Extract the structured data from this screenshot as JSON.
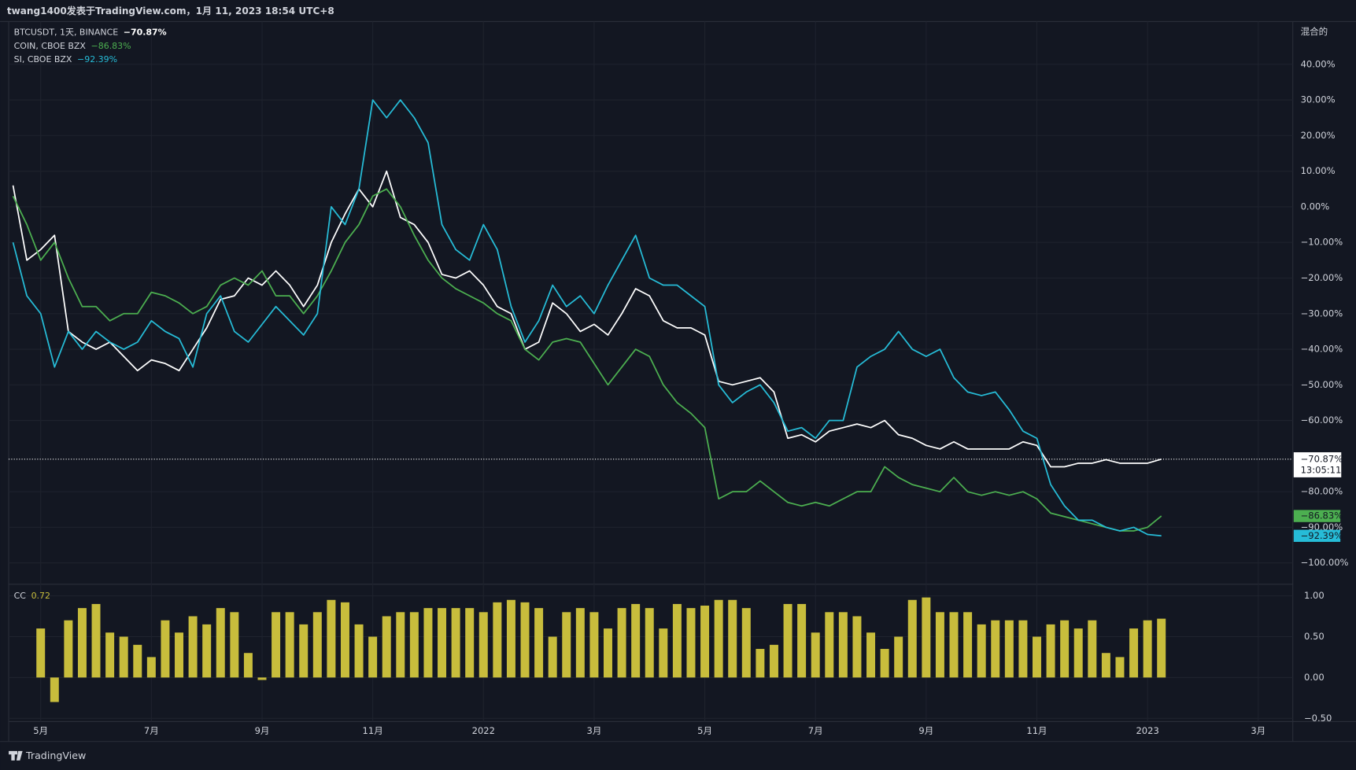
{
  "header": {
    "text": "twang1400发表于TradingView.com，1月 11, 2023 18:54 UTC+8"
  },
  "footer": {
    "brand": "TradingView"
  },
  "chart_data": [
    {
      "type": "line",
      "scale_label": "混合的",
      "countdown": "13:05:11",
      "grid": true,
      "categories": [
        null,
        null,
        "5月",
        null,
        null,
        null,
        null,
        null,
        null,
        null,
        "7月",
        null,
        null,
        null,
        null,
        null,
        null,
        null,
        "9月",
        null,
        null,
        null,
        null,
        null,
        null,
        null,
        "11月",
        null,
        null,
        null,
        null,
        null,
        null,
        null,
        "2022",
        null,
        null,
        null,
        null,
        null,
        null,
        null,
        "3月",
        null,
        null,
        null,
        null,
        null,
        null,
        null,
        "5月",
        null,
        null,
        null,
        null,
        null,
        null,
        null,
        "7月",
        null,
        null,
        null,
        null,
        null,
        null,
        null,
        "9月",
        null,
        null,
        null,
        null,
        null,
        null,
        null,
        "11月",
        null,
        null,
        null,
        null,
        null,
        null,
        null,
        "2023",
        null,
        null,
        null,
        null,
        null,
        null,
        null,
        "3月",
        null,
        null
      ],
      "ylim": [
        -105,
        52
      ],
      "yticks": [
        {
          "value": 40,
          "label": "40.00%"
        },
        {
          "value": 30,
          "label": "30.00%"
        },
        {
          "value": 20,
          "label": "20.00%"
        },
        {
          "value": 10,
          "label": "10.00%"
        },
        {
          "value": 0,
          "label": "0.00%"
        },
        {
          "value": -10,
          "label": "−10.00%"
        },
        {
          "value": -20,
          "label": "−20.00%"
        },
        {
          "value": -30,
          "label": "−30.00%"
        },
        {
          "value": -40,
          "label": "−40.00%"
        },
        {
          "value": -50,
          "label": "−50.00%"
        },
        {
          "value": -60,
          "label": "−60.00%"
        },
        {
          "value": -80,
          "label": "−80.00%"
        },
        {
          "value": -90,
          "label": "−90.00%"
        },
        {
          "value": -100,
          "label": "−100.00%"
        }
      ],
      "series": [
        {
          "name": "BTCUSDT, 1天, BINANCE",
          "color": "#ffffff",
          "last_value_label": "−70.87%",
          "values": [
            6,
            -15,
            -12,
            -8,
            -35,
            -38,
            -40,
            -38,
            -42,
            -46,
            -43,
            -44,
            -46,
            -40,
            -34,
            -26,
            -25,
            -20,
            -22,
            -18,
            -22,
            -28,
            -22,
            -10,
            -2,
            5,
            0,
            10,
            -3,
            -5,
            -10,
            -19,
            -20,
            -18,
            -22,
            -28,
            -30,
            -40,
            -38,
            -27,
            -30,
            -35,
            -33,
            -36,
            -30,
            -23,
            -25,
            -32,
            -34,
            -34,
            -36,
            -49,
            -50,
            -49,
            -48,
            -52,
            -65,
            -64,
            -66,
            -63,
            -62,
            -61,
            -62,
            -60,
            -64,
            -65,
            -67,
            -68,
            -66,
            -68,
            -68,
            -68,
            -68,
            -66,
            -67,
            -73,
            -73,
            -72,
            -72,
            -71,
            -72,
            -72,
            -72,
            -70.87,
            null,
            null,
            null,
            null,
            null,
            null,
            null,
            null,
            null
          ]
        },
        {
          "name": "COIN, CBOE BZX",
          "color": "#4caf50",
          "last_value_label": "−86.83%",
          "values": [
            3,
            -5,
            -15,
            -10,
            -20,
            -28,
            -28,
            -32,
            -30,
            -30,
            -24,
            -25,
            -27,
            -30,
            -28,
            -22,
            -20,
            -22,
            -18,
            -25,
            -25,
            -30,
            -25,
            -18,
            -10,
            -5,
            3,
            5,
            0,
            -8,
            -15,
            -20,
            -23,
            -25,
            -27,
            -30,
            -32,
            -40,
            -43,
            -38,
            -37,
            -38,
            -44,
            -50,
            -45,
            -40,
            -42,
            -50,
            -55,
            -58,
            -62,
            -82,
            -80,
            -80,
            -77,
            -80,
            -83,
            -84,
            -83,
            -84,
            -82,
            -80,
            -80,
            -73,
            -76,
            -78,
            -79,
            -80,
            -76,
            -80,
            -81,
            -80,
            -81,
            -80,
            -82,
            -86,
            -87,
            -88,
            -89,
            -90,
            -91,
            -91,
            -90,
            -86.83,
            null,
            null,
            null,
            null,
            null,
            null,
            null,
            null,
            null
          ]
        },
        {
          "name": "SI, CBOE BZX",
          "color": "#26bcd7",
          "last_value_label": "−92.39%",
          "values": [
            -10,
            -25,
            -30,
            -45,
            -35,
            -40,
            -35,
            -38,
            -40,
            -38,
            -32,
            -35,
            -37,
            -45,
            -30,
            -25,
            -35,
            -38,
            -33,
            -28,
            -32,
            -36,
            -30,
            0,
            -5,
            5,
            30,
            25,
            30,
            25,
            18,
            -5,
            -12,
            -15,
            -5,
            -12,
            -28,
            -38,
            -32,
            -22,
            -28,
            -25,
            -30,
            -22,
            -15,
            -8,
            -20,
            -22,
            -22,
            -25,
            -28,
            -50,
            -55,
            -52,
            -50,
            -55,
            -63,
            -62,
            -65,
            -60,
            -60,
            -45,
            -42,
            -40,
            -35,
            -40,
            -42,
            -40,
            -48,
            -52,
            -53,
            -52,
            -57,
            -63,
            -65,
            -78,
            -84,
            -88,
            -88,
            -90,
            -91,
            -90,
            -92,
            -92.39,
            null,
            null,
            null,
            null,
            null,
            null,
            null,
            null,
            null
          ]
        }
      ]
    },
    {
      "type": "bar",
      "name": "CC",
      "color": "#c8bd3c",
      "ylim": [
        -0.54,
        1.1
      ],
      "yticks": [
        {
          "value": 1,
          "label": "1.00"
        },
        {
          "value": 0.5,
          "label": "0.50"
        },
        {
          "value": 0,
          "label": "0.00"
        },
        {
          "value": -0.5,
          "label": "−0.50"
        }
      ],
      "values": [
        null,
        null,
        0.6,
        -0.3,
        0.7,
        0.85,
        0.9,
        0.55,
        0.5,
        0.4,
        0.25,
        0.7,
        0.55,
        0.75,
        0.65,
        0.85,
        0.8,
        0.3,
        -0.03,
        0.8,
        0.8,
        0.65,
        0.8,
        0.95,
        0.92,
        0.65,
        0.5,
        0.75,
        0.8,
        0.8,
        0.85,
        0.85,
        0.85,
        0.85,
        0.8,
        0.92,
        0.95,
        0.92,
        0.85,
        0.5,
        0.8,
        0.85,
        0.8,
        0.6,
        0.85,
        0.9,
        0.85,
        0.6,
        0.9,
        0.85,
        0.88,
        0.95,
        0.95,
        0.85,
        0.35,
        0.4,
        0.9,
        0.9,
        0.55,
        0.8,
        0.8,
        0.75,
        0.55,
        0.35,
        0.5,
        0.95,
        0.98,
        0.8,
        0.8,
        0.8,
        0.65,
        0.7,
        0.7,
        0.7,
        0.5,
        0.65,
        0.7,
        0.6,
        0.7,
        0.3,
        0.25,
        0.6,
        0.7,
        0.72,
        null,
        null,
        null,
        null,
        null,
        null,
        null,
        null,
        null
      ]
    }
  ]
}
